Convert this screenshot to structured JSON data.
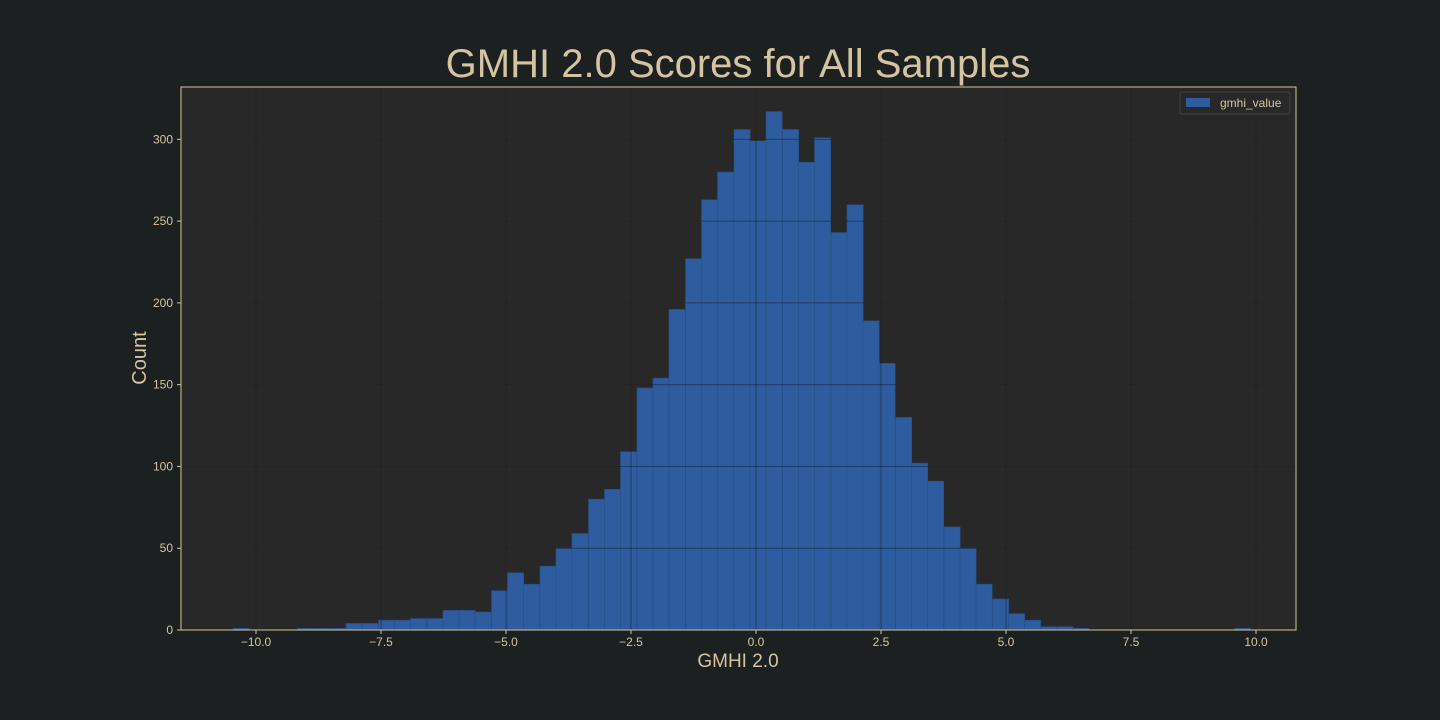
{
  "chart_data": {
    "type": "bar",
    "title": "GMHI 2.0 Scores for All Samples",
    "xlabel": "GMHI 2.0",
    "ylabel": "Count",
    "xlim": [
      -11.5,
      10.8
    ],
    "ylim": [
      0,
      332
    ],
    "grid": true,
    "legend_position": "top-right",
    "x_ticks": [
      -10,
      -7.5,
      -5,
      -2.5,
      0,
      2.5,
      5,
      7.5,
      10
    ],
    "x_tick_labels": [
      "−10.0",
      "−7.5",
      "−5.0",
      "−2.5",
      "0.0",
      "2.5",
      "5.0",
      "7.5",
      "10.0"
    ],
    "y_ticks": [
      0,
      50,
      100,
      150,
      200,
      250,
      300
    ],
    "y_tick_labels": [
      "0",
      "50",
      "100",
      "150",
      "200",
      "250",
      "300"
    ],
    "bin_width": 0.323,
    "series": [
      {
        "name": "gmhi_value",
        "bins": [
          {
            "x0": -10.46,
            "count": 1
          },
          {
            "x0": -9.17,
            "count": 1
          },
          {
            "x0": -8.85,
            "count": 1
          },
          {
            "x0": -8.52,
            "count": 1
          },
          {
            "x0": -8.2,
            "count": 4
          },
          {
            "x0": -7.88,
            "count": 4
          },
          {
            "x0": -7.55,
            "count": 6
          },
          {
            "x0": -7.23,
            "count": 6
          },
          {
            "x0": -6.91,
            "count": 7
          },
          {
            "x0": -6.58,
            "count": 7
          },
          {
            "x0": -6.26,
            "count": 12
          },
          {
            "x0": -5.94,
            "count": 12
          },
          {
            "x0": -5.62,
            "count": 11
          },
          {
            "x0": -5.29,
            "count": 24
          },
          {
            "x0": -4.97,
            "count": 35
          },
          {
            "x0": -4.65,
            "count": 28
          },
          {
            "x0": -4.32,
            "count": 39
          },
          {
            "x0": -4.0,
            "count": 50
          },
          {
            "x0": -3.68,
            "count": 59
          },
          {
            "x0": -3.35,
            "count": 80
          },
          {
            "x0": -3.03,
            "count": 86
          },
          {
            "x0": -2.71,
            "count": 109
          },
          {
            "x0": -2.38,
            "count": 148
          },
          {
            "x0": -2.06,
            "count": 154
          },
          {
            "x0": -1.74,
            "count": 196
          },
          {
            "x0": -1.41,
            "count": 227
          },
          {
            "x0": -1.09,
            "count": 263
          },
          {
            "x0": -0.77,
            "count": 280
          },
          {
            "x0": -0.44,
            "count": 306
          },
          {
            "x0": -0.12,
            "count": 299
          },
          {
            "x0": 0.2,
            "count": 317
          },
          {
            "x0": 0.53,
            "count": 306
          },
          {
            "x0": 0.85,
            "count": 286
          },
          {
            "x0": 1.17,
            "count": 301
          },
          {
            "x0": 1.5,
            "count": 243
          },
          {
            "x0": 1.82,
            "count": 260
          },
          {
            "x0": 2.14,
            "count": 189
          },
          {
            "x0": 2.46,
            "count": 163
          },
          {
            "x0": 2.79,
            "count": 130
          },
          {
            "x0": 3.11,
            "count": 102
          },
          {
            "x0": 3.43,
            "count": 91
          },
          {
            "x0": 3.76,
            "count": 63
          },
          {
            "x0": 4.08,
            "count": 50
          },
          {
            "x0": 4.4,
            "count": 28
          },
          {
            "x0": 4.73,
            "count": 19
          },
          {
            "x0": 5.05,
            "count": 10
          },
          {
            "x0": 5.37,
            "count": 6
          },
          {
            "x0": 5.7,
            "count": 2
          },
          {
            "x0": 6.02,
            "count": 2
          },
          {
            "x0": 6.34,
            "count": 1
          },
          {
            "x0": 9.57,
            "count": 1
          }
        ]
      }
    ]
  },
  "colors": {
    "background": "#1d2021",
    "plot_area": "#282828",
    "bar_fill": "#2e5c9e",
    "bar_edge": "#294f85",
    "grid": "#3a3a3a",
    "frame": "#d5c4a1",
    "text": "#d5c4a1",
    "title": "#d5c4a1"
  }
}
